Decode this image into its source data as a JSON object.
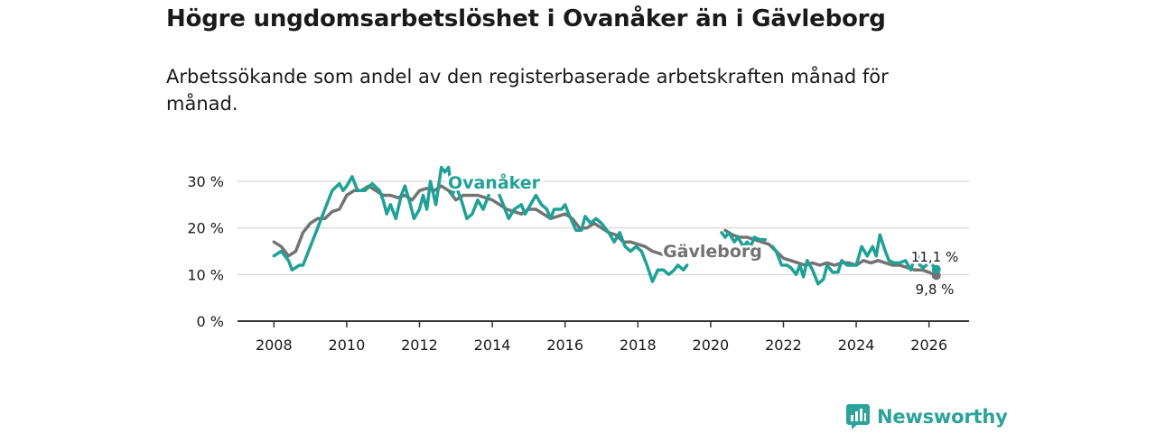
{
  "header": {
    "title": "Högre ungdomsarbetslöshet i Ovanåker än i Gävleborg",
    "subtitle": "Arbetssökande som andel av den registerbaserade arbetskraften månad för månad."
  },
  "brand": {
    "name": "Newsworthy",
    "icon": "newsworthy-logo-icon",
    "color": "#2ba39a"
  },
  "colors": {
    "ovanaker": "#1fa196",
    "gavleborg": "#737373",
    "grid": "#dddddd",
    "axis": "#333333"
  },
  "chart_data": {
    "type": "line",
    "title": "Högre ungdomsarbetslöshet i Ovanåker än i Gävleborg",
    "subtitle": "Arbetssökande som andel av den registerbaserade arbetskraften månad för månad.",
    "xlabel": "",
    "ylabel": "",
    "x_range": [
      2007.0,
      2027.1
    ],
    "ylim": [
      0,
      33
    ],
    "y_ticks": [
      0,
      10,
      20,
      30
    ],
    "y_tick_labels": [
      "0 %",
      "10 %",
      "20 %",
      "30 %"
    ],
    "x_ticks": [
      2008,
      2010,
      2012,
      2014,
      2016,
      2018,
      2020,
      2022,
      2024,
      2026
    ],
    "x_tick_labels": [
      "2008",
      "2010",
      "2012",
      "2014",
      "2016",
      "2018",
      "2020",
      "2022",
      "2024",
      "2026"
    ],
    "grid": true,
    "series": [
      {
        "name": "Ovanåker",
        "label": "Ovanåker",
        "end_label": "11,1 %",
        "last_value": 11.1,
        "segments": [
          [
            [
              2008.0,
              14.0
            ],
            [
              2008.2,
              15.0
            ],
            [
              2008.4,
              13.0
            ],
            [
              2008.5,
              11.0
            ],
            [
              2008.7,
              12.0
            ],
            [
              2008.8,
              12.0
            ],
            [
              2009.0,
              16.0
            ],
            [
              2009.2,
              20.0
            ],
            [
              2009.4,
              24.0
            ],
            [
              2009.6,
              28.0
            ],
            [
              2009.8,
              29.5
            ],
            [
              2009.9,
              28.0
            ],
            [
              2010.0,
              29.0
            ],
            [
              2010.15,
              31.0
            ],
            [
              2010.3,
              28.0
            ],
            [
              2010.5,
              28.0
            ],
            [
              2010.7,
              29.5
            ],
            [
              2010.9,
              28.0
            ],
            [
              2011.0,
              26.0
            ],
            [
              2011.1,
              23.0
            ],
            [
              2011.2,
              25.0
            ],
            [
              2011.35,
              22.0
            ],
            [
              2011.5,
              27.0
            ],
            [
              2011.6,
              29.0
            ],
            [
              2011.75,
              25.0
            ],
            [
              2011.85,
              22.0
            ],
            [
              2012.0,
              24.0
            ],
            [
              2012.1,
              27.0
            ],
            [
              2012.2,
              24.0
            ],
            [
              2012.3,
              30.0
            ],
            [
              2012.45,
              25.0
            ],
            [
              2012.6,
              33.0
            ],
            [
              2012.7,
              32.0
            ],
            [
              2012.8,
              33.0
            ],
            [
              2012.9,
              27.0
            ],
            [
              2013.0,
              29.0
            ],
            [
              2013.15,
              26.0
            ],
            [
              2013.3,
              22.0
            ],
            [
              2013.45,
              23.0
            ],
            [
              2013.6,
              26.0
            ],
            [
              2013.75,
              24.0
            ],
            [
              2013.9,
              27.0
            ]
          ],
          [
            [
              2014.2,
              27.0
            ],
            [
              2014.3,
              25.0
            ],
            [
              2014.45,
              22.0
            ],
            [
              2014.6,
              24.0
            ],
            [
              2014.8,
              25.0
            ],
            [
              2014.9,
              23.0
            ],
            [
              2015.05,
              25.0
            ],
            [
              2015.2,
              27.0
            ],
            [
              2015.35,
              25.0
            ],
            [
              2015.5,
              24.0
            ],
            [
              2015.6,
              22.0
            ],
            [
              2015.7,
              24.0
            ],
            [
              2015.9,
              24.0
            ],
            [
              2016.0,
              25.0
            ],
            [
              2016.1,
              23.0
            ],
            [
              2016.3,
              19.5
            ],
            [
              2016.45,
              19.5
            ],
            [
              2016.55,
              22.5
            ],
            [
              2016.7,
              21.0
            ],
            [
              2016.85,
              22.0
            ],
            [
              2017.0,
              21.0
            ],
            [
              2017.2,
              19.0
            ],
            [
              2017.35,
              17.0
            ],
            [
              2017.5,
              19.0
            ],
            [
              2017.65,
              16.0
            ],
            [
              2017.8,
              15.0
            ],
            [
              2017.95,
              16.0
            ],
            [
              2018.1,
              15.0
            ],
            [
              2018.25,
              12.0
            ],
            [
              2018.4,
              8.5
            ],
            [
              2018.55,
              11.0
            ],
            [
              2018.7,
              11.0
            ],
            [
              2018.85,
              10.0
            ],
            [
              2019.0,
              11.0
            ],
            [
              2019.1,
              12.0
            ],
            [
              2019.25,
              11.0
            ],
            [
              2019.35,
              12.0
            ]
          ],
          [
            [
              2020.3,
              19.0
            ],
            [
              2020.4,
              18.0
            ],
            [
              2020.5,
              19.0
            ],
            [
              2020.65,
              17.0
            ],
            [
              2020.75,
              18.0
            ],
            [
              2020.9,
              16.0
            ],
            [
              2021.0,
              17.0
            ],
            [
              2021.1,
              16.0
            ],
            [
              2021.2,
              18.0
            ],
            [
              2021.35,
              17.5
            ],
            [
              2021.5,
              17.5
            ]
          ],
          [
            [
              2021.7,
              16.0
            ],
            [
              2021.8,
              15.0
            ],
            [
              2021.95,
              12.0
            ],
            [
              2022.1,
              12.0
            ],
            [
              2022.2,
              11.5
            ],
            [
              2022.35,
              10.0
            ],
            [
              2022.45,
              12.0
            ],
            [
              2022.55,
              9.5
            ],
            [
              2022.65,
              13.0
            ],
            [
              2022.8,
              11.0
            ],
            [
              2022.95,
              8.0
            ],
            [
              2023.1,
              9.0
            ],
            [
              2023.2,
              12.0
            ],
            [
              2023.35,
              10.5
            ],
            [
              2023.5,
              10.5
            ],
            [
              2023.6,
              13.0
            ],
            [
              2023.75,
              12.0
            ],
            [
              2023.85,
              12.0
            ],
            [
              2024.0,
              12.0
            ],
            [
              2024.15,
              16.0
            ],
            [
              2024.3,
              14.0
            ],
            [
              2024.45,
              16.0
            ],
            [
              2024.55,
              14.0
            ],
            [
              2024.65,
              18.5
            ],
            [
              2024.8,
              15.0
            ],
            [
              2024.9,
              13.0
            ],
            [
              2025.05,
              12.5
            ],
            [
              2025.2,
              12.5
            ],
            [
              2025.35,
              13.0
            ],
            [
              2025.5,
              11.0
            ],
            [
              2025.65,
              15.0
            ],
            [
              2025.75,
              12.0
            ],
            [
              2025.85,
              11.5
            ],
            [
              2026.0,
              12.5
            ],
            [
              2026.1,
              12.0
            ],
            [
              2026.2,
              11.1
            ]
          ]
        ]
      },
      {
        "name": "Gävleborg",
        "label": "Gävleborg",
        "end_label": "9,8 %",
        "last_value": 9.8,
        "segments": [
          [
            [
              2008.0,
              17.0
            ],
            [
              2008.2,
              16.0
            ],
            [
              2008.4,
              14.0
            ],
            [
              2008.6,
              15.0
            ],
            [
              2008.8,
              19.0
            ],
            [
              2009.0,
              21.0
            ],
            [
              2009.2,
              22.0
            ],
            [
              2009.4,
              22.0
            ],
            [
              2009.6,
              23.5
            ],
            [
              2009.8,
              24.0
            ],
            [
              2010.0,
              27.0
            ],
            [
              2010.2,
              28.0
            ],
            [
              2010.4,
              28.0
            ],
            [
              2010.6,
              29.0
            ],
            [
              2010.8,
              28.0
            ],
            [
              2011.0,
              27.0
            ],
            [
              2011.2,
              27.0
            ],
            [
              2011.4,
              26.5
            ],
            [
              2011.6,
              27.0
            ],
            [
              2011.8,
              26.0
            ],
            [
              2012.0,
              28.0
            ],
            [
              2012.2,
              28.5
            ],
            [
              2012.4,
              28.0
            ],
            [
              2012.6,
              29.0
            ],
            [
              2012.8,
              28.0
            ],
            [
              2013.0,
              26.0
            ],
            [
              2013.2,
              27.0
            ],
            [
              2013.4,
              27.0
            ],
            [
              2013.6,
              27.0
            ],
            [
              2013.8,
              26.5
            ],
            [
              2014.0,
              26.0
            ],
            [
              2014.2,
              25.0
            ],
            [
              2014.4,
              24.0
            ],
            [
              2014.6,
              23.5
            ],
            [
              2014.8,
              23.0
            ],
            [
              2015.0,
              24.0
            ],
            [
              2015.2,
              24.0
            ],
            [
              2015.4,
              23.0
            ],
            [
              2015.6,
              22.0
            ],
            [
              2015.8,
              22.5
            ],
            [
              2016.0,
              23.0
            ],
            [
              2016.2,
              22.0
            ],
            [
              2016.4,
              20.0
            ],
            [
              2016.6,
              20.0
            ],
            [
              2016.8,
              21.0
            ],
            [
              2017.0,
              20.0
            ],
            [
              2017.2,
              19.0
            ],
            [
              2017.4,
              18.5
            ],
            [
              2017.6,
              17.0
            ],
            [
              2017.8,
              17.0
            ],
            [
              2018.0,
              16.5
            ],
            [
              2018.2,
              16.0
            ],
            [
              2018.4,
              15.0
            ],
            [
              2018.6,
              14.5
            ],
            [
              2018.8,
              14.0
            ]
          ],
          [
            [
              2020.4,
              19.5
            ],
            [
              2020.6,
              18.5
            ],
            [
              2020.8,
              18.0
            ],
            [
              2021.0,
              18.0
            ],
            [
              2021.2,
              17.5
            ],
            [
              2021.4,
              17.0
            ],
            [
              2021.6,
              16.5
            ],
            [
              2021.8,
              15.0
            ],
            [
              2022.0,
              13.5
            ],
            [
              2022.2,
              13.0
            ],
            [
              2022.4,
              12.5
            ],
            [
              2022.6,
              12.0
            ],
            [
              2022.8,
              12.5
            ],
            [
              2023.0,
              12.0
            ],
            [
              2023.2,
              12.5
            ],
            [
              2023.4,
              12.0
            ],
            [
              2023.6,
              12.5
            ],
            [
              2023.8,
              12.5
            ],
            [
              2024.0,
              12.0
            ],
            [
              2024.2,
              13.0
            ],
            [
              2024.4,
              12.5
            ],
            [
              2024.6,
              13.0
            ],
            [
              2024.8,
              12.5
            ],
            [
              2025.0,
              12.0
            ],
            [
              2025.2,
              12.0
            ],
            [
              2025.4,
              11.5
            ],
            [
              2025.6,
              11.0
            ],
            [
              2025.8,
              11.0
            ],
            [
              2026.0,
              10.5
            ],
            [
              2026.2,
              9.8
            ]
          ]
        ]
      }
    ]
  }
}
